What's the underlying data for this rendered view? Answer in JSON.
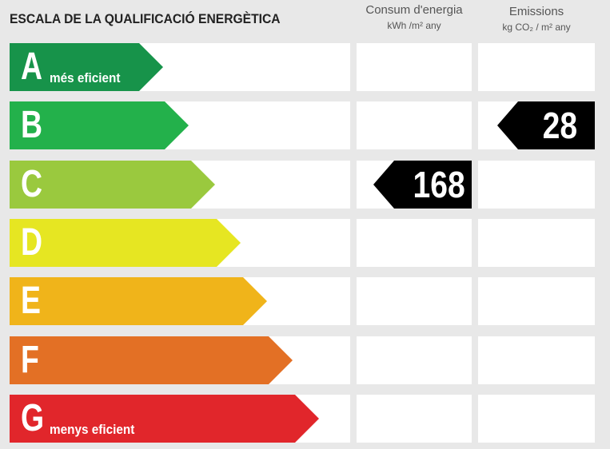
{
  "title": "ESCALA DE LA QUALIFICACIÓ ENERGÈTICA",
  "columns": {
    "consumption": {
      "title": "Consum d'energia",
      "unit": "kWh /m² any"
    },
    "emissions": {
      "title": "Emissions",
      "unit": "kg CO₂ / m² any"
    }
  },
  "ratings": [
    {
      "letter": "A",
      "label": "més eficient",
      "color": "#17934a"
    },
    {
      "letter": "B",
      "label": "",
      "color": "#23b14b"
    },
    {
      "letter": "C",
      "label": "",
      "color": "#9ac93e"
    },
    {
      "letter": "D",
      "label": "",
      "color": "#e6e622"
    },
    {
      "letter": "E",
      "label": "",
      "color": "#f0b41a"
    },
    {
      "letter": "F",
      "label": "",
      "color": "#e37025"
    },
    {
      "letter": "G",
      "label": "menys eficient",
      "color": "#e1262b"
    }
  ],
  "consumption_value": {
    "value": "168",
    "rating": "C"
  },
  "emissions_value": {
    "value": "28",
    "rating": "B"
  }
}
